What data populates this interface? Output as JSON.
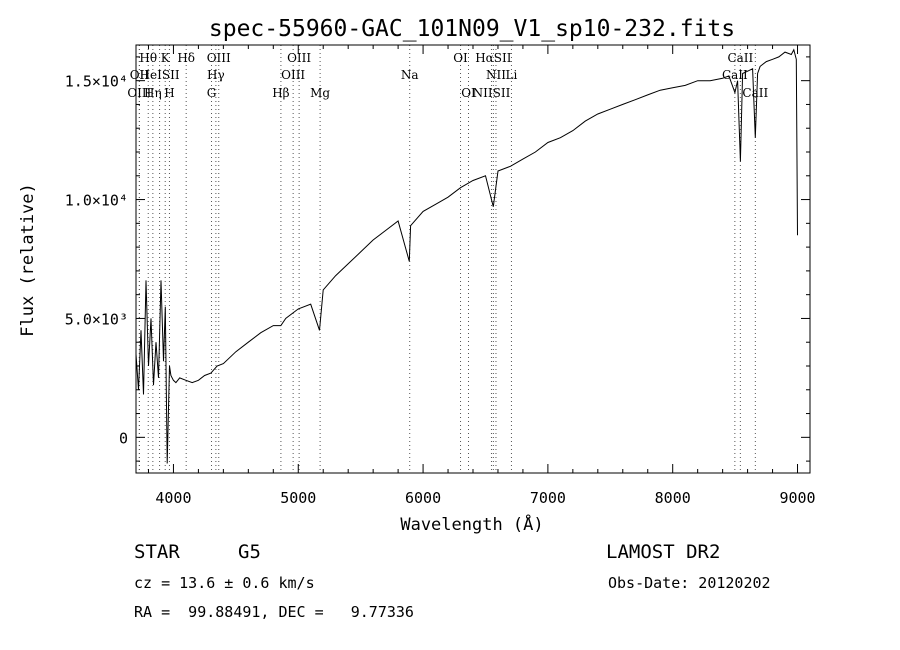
{
  "chart_data": {
    "type": "line",
    "title": "spec-55960-GAC_101N09_V1_sp10-232.fits",
    "xlabel": "Wavelength (Å)",
    "ylabel": "Flux (relative)",
    "xlim": [
      3700,
      9100
    ],
    "ylim": [
      -1500,
      16500
    ],
    "x_ticks": [
      4000,
      5000,
      6000,
      7000,
      8000,
      9000
    ],
    "x_tick_labels": [
      "4000",
      "5000",
      "6000",
      "7000",
      "8000",
      "9000"
    ],
    "y_ticks": [
      0,
      5000,
      10000,
      15000
    ],
    "y_tick_labels": [
      "0",
      "5.0×10³",
      "1.0×10⁴",
      "1.5×10⁴"
    ],
    "grid": false,
    "series": [
      {
        "color": "#000000",
        "x": [
          3700,
          3720,
          3740,
          3760,
          3780,
          3800,
          3820,
          3840,
          3860,
          3880,
          3900,
          3920,
          3935,
          3950,
          3968,
          3980,
          4000,
          4020,
          4050,
          4100,
          4150,
          4200,
          4250,
          4300,
          4350,
          4400,
          4500,
          4600,
          4700,
          4800,
          4860,
          4900,
          5000,
          5100,
          5170,
          5200,
          5300,
          5400,
          5500,
          5600,
          5700,
          5800,
          5890,
          5900,
          6000,
          6100,
          6200,
          6300,
          6400,
          6500,
          6563,
          6600,
          6700,
          6800,
          6900,
          7000,
          7100,
          7200,
          7300,
          7400,
          7500,
          7600,
          7700,
          7800,
          7900,
          8000,
          8100,
          8200,
          8300,
          8400,
          8450,
          8498,
          8520,
          8542,
          8560,
          8600,
          8640,
          8662,
          8680,
          8700,
          8750,
          8800,
          8850,
          8900,
          8950,
          8970,
          8990,
          9000
        ],
        "y": [
          3500,
          2000,
          4500,
          1800,
          6600,
          3000,
          5000,
          2200,
          4000,
          2500,
          6600,
          3200,
          5500,
          -1100,
          3000,
          2600,
          2400,
          2300,
          2500,
          2400,
          2300,
          2400,
          2600,
          2700,
          3000,
          3100,
          3600,
          4000,
          4400,
          4700,
          4700,
          5000,
          5400,
          5600,
          4500,
          6200,
          6800,
          7300,
          7800,
          8300,
          8700,
          9100,
          7400,
          8900,
          9500,
          9800,
          10100,
          10500,
          10800,
          11000,
          9700,
          11200,
          11400,
          11700,
          12000,
          12400,
          12600,
          12900,
          13300,
          13600,
          13800,
          14000,
          14200,
          14400,
          14600,
          14700,
          14800,
          15000,
          15000,
          15100,
          15200,
          14500,
          15000,
          11600,
          15300,
          15400,
          15500,
          12600,
          15300,
          15600,
          15800,
          15900,
          16000,
          16200,
          16100,
          16300,
          15900,
          8500
        ]
      }
    ],
    "lines": [
      {
        "label": "Hθ",
        "x": 3798
      },
      {
        "label": "K",
        "x": 3934
      },
      {
        "label": "Hδ",
        "x": 4102
      },
      {
        "label": "OIII",
        "x": 4363
      },
      {
        "label": "OIII",
        "x": 5007
      },
      {
        "label": "OI",
        "x": 6300
      },
      {
        "label": "HαSII",
        "x": 6563
      },
      {
        "label": "CaII",
        "x": 8542
      },
      {
        "label": "OII",
        "x": 3727
      },
      {
        "label": "HeISII",
        "x": 3889
      },
      {
        "label": "Hγ",
        "x": 4340
      },
      {
        "label": "OIII",
        "x": 4959
      },
      {
        "label": "Na",
        "x": 5893
      },
      {
        "label": "NII",
        "x": 6584
      },
      {
        "label": "Li",
        "x": 6708
      },
      {
        "label": "CaII",
        "x": 8498
      },
      {
        "label": "OIII",
        "x": 3727
      },
      {
        "label": "Hη",
        "x": 3835
      },
      {
        "label": "H",
        "x": 3968
      },
      {
        "label": "G",
        "x": 4305
      },
      {
        "label": "Hβ",
        "x": 4861
      },
      {
        "label": "Mg",
        "x": 5175
      },
      {
        "label": "OI",
        "x": 6364
      },
      {
        "label": "NIISII",
        "x": 6548
      },
      {
        "label": "CaII",
        "x": 8662
      }
    ]
  },
  "info": {
    "object_type": "STAR",
    "subclass": "G5",
    "survey": "LAMOST DR2",
    "cz": "cz = 13.6 ± 0.6 km/s",
    "obs_date": "Obs-Date: 20120202",
    "coords": "RA =  99.88491, DEC =   9.77336"
  }
}
